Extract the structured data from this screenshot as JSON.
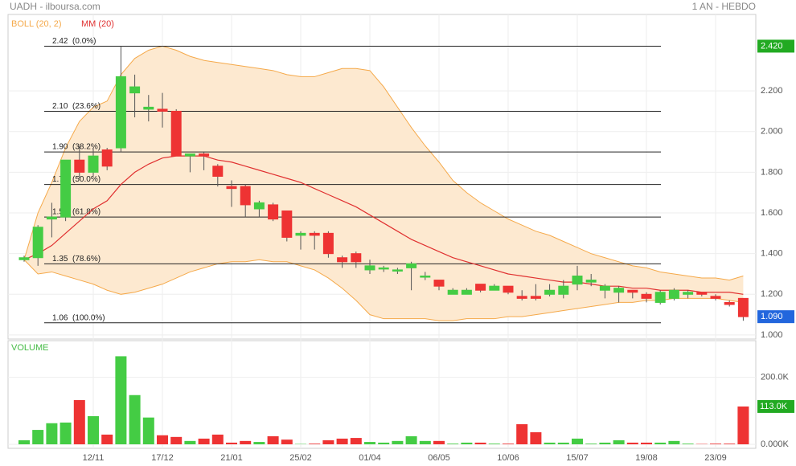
{
  "chart_data": {
    "type": "candlestick",
    "title": "UADH - ilboursa.com",
    "period": "1 AN - HEBDO",
    "volume_title": "VOLUME",
    "categories": [
      null,
      null,
      null,
      null,
      null,
      "12/11",
      null,
      null,
      null,
      null,
      "17/12",
      null,
      null,
      null,
      null,
      "21/01",
      null,
      null,
      null,
      null,
      "25/02",
      null,
      null,
      null,
      null,
      "01/04",
      null,
      null,
      null,
      null,
      "06/05",
      null,
      null,
      null,
      null,
      "10/06",
      null,
      null,
      null,
      null,
      "15/07",
      null,
      null,
      null,
      null,
      "19/08",
      null,
      null,
      null,
      null,
      "23/09",
      null,
      null
    ],
    "open": [
      1.37,
      1.38,
      1.57,
      1.58,
      1.86,
      1.8,
      1.91,
      1.92,
      2.19,
      2.11,
      2.11,
      2.1,
      1.88,
      1.89,
      1.83,
      1.73,
      1.73,
      1.62,
      1.64,
      1.61,
      1.49,
      1.5,
      1.5,
      1.38,
      1.4,
      1.32,
      1.33,
      1.32,
      1.33,
      1.29,
      1.27,
      1.2,
      1.2,
      1.25,
      1.22,
      1.24,
      1.19,
      1.19,
      1.2,
      1.2,
      1.25,
      1.26,
      1.22,
      1.21,
      1.22,
      1.2,
      1.16,
      1.18,
      1.2,
      1.21,
      1.19,
      1.16,
      1.18
    ],
    "high": [
      1.39,
      1.54,
      1.65,
      1.86,
      1.93,
      1.92,
      1.92,
      2.42,
      2.28,
      2.18,
      2.19,
      2.11,
      1.89,
      1.9,
      1.84,
      1.76,
      1.74,
      1.66,
      1.65,
      1.61,
      1.51,
      1.51,
      1.51,
      1.39,
      1.41,
      1.37,
      1.34,
      1.33,
      1.36,
      1.31,
      1.27,
      1.23,
      1.23,
      1.25,
      1.25,
      1.24,
      1.22,
      1.25,
      1.25,
      1.27,
      1.34,
      1.3,
      1.25,
      1.24,
      1.22,
      1.21,
      1.22,
      1.23,
      1.22,
      1.21,
      1.2,
      1.17,
      1.18
    ],
    "low": [
      1.36,
      1.34,
      1.48,
      1.56,
      1.77,
      1.78,
      1.81,
      1.9,
      2.07,
      2.05,
      2.02,
      1.88,
      1.8,
      1.81,
      1.73,
      1.63,
      1.58,
      1.58,
      1.56,
      1.46,
      1.42,
      1.42,
      1.38,
      1.33,
      1.33,
      1.3,
      1.31,
      1.3,
      1.22,
      1.27,
      1.22,
      1.2,
      1.2,
      1.21,
      1.22,
      1.2,
      1.17,
      1.17,
      1.19,
      1.18,
      1.22,
      1.24,
      1.18,
      1.16,
      1.18,
      1.16,
      1.15,
      1.17,
      1.18,
      1.19,
      1.17,
      1.14,
      1.07
    ],
    "close": [
      1.38,
      1.53,
      1.58,
      1.86,
      1.8,
      1.88,
      1.83,
      2.27,
      2.22,
      2.12,
      2.1,
      1.88,
      1.89,
      1.88,
      1.78,
      1.72,
      1.64,
      1.65,
      1.57,
      1.48,
      1.5,
      1.49,
      1.4,
      1.36,
      1.36,
      1.34,
      1.33,
      1.32,
      1.35,
      1.29,
      1.24,
      1.22,
      1.22,
      1.22,
      1.24,
      1.21,
      1.18,
      1.18,
      1.22,
      1.24,
      1.29,
      1.27,
      1.24,
      1.23,
      1.21,
      1.18,
      1.21,
      1.22,
      1.21,
      1.2,
      1.18,
      1.15,
      1.09
    ],
    "volume": [
      12000,
      43000,
      63000,
      65000,
      132000,
      84000,
      29000,
      263000,
      147000,
      80000,
      27000,
      22000,
      10000,
      17000,
      29000,
      5000,
      10000,
      7000,
      24000,
      14000,
      1000,
      2000,
      12000,
      17000,
      19000,
      7000,
      5000,
      10000,
      24000,
      10000,
      10000,
      2000,
      5000,
      5000,
      2000,
      2000,
      60000,
      36000,
      5000,
      5000,
      17000,
      2000,
      5000,
      12000,
      5000,
      5000,
      5000,
      10000,
      2000,
      1000,
      2000,
      2000,
      113000
    ],
    "up_color": "#44cc44",
    "down_color": "#ee3333",
    "bollinger": {
      "name": "BOLL (20, 2)",
      "color": "#f5a94a",
      "fill": "#fde9d0",
      "upper": [
        1.37,
        1.6,
        1.75,
        1.92,
        2.05,
        2.12,
        2.15,
        2.28,
        2.36,
        2.4,
        2.42,
        2.4,
        2.37,
        2.35,
        2.34,
        2.33,
        2.32,
        2.31,
        2.3,
        2.28,
        2.27,
        2.27,
        2.29,
        2.31,
        2.31,
        2.3,
        2.22,
        2.12,
        2.02,
        1.93,
        1.85,
        1.76,
        1.7,
        1.65,
        1.61,
        1.57,
        1.54,
        1.51,
        1.49,
        1.46,
        1.43,
        1.4,
        1.38,
        1.36,
        1.34,
        1.33,
        1.31,
        1.3,
        1.29,
        1.28,
        1.28,
        1.27,
        1.29
      ],
      "lower": [
        1.37,
        1.3,
        1.31,
        1.29,
        1.27,
        1.25,
        1.22,
        1.2,
        1.21,
        1.23,
        1.25,
        1.28,
        1.31,
        1.33,
        1.35,
        1.36,
        1.36,
        1.37,
        1.36,
        1.36,
        1.34,
        1.32,
        1.28,
        1.23,
        1.17,
        1.1,
        1.08,
        1.08,
        1.08,
        1.08,
        1.07,
        1.07,
        1.08,
        1.08,
        1.08,
        1.09,
        1.09,
        1.1,
        1.11,
        1.12,
        1.13,
        1.14,
        1.15,
        1.16,
        1.16,
        1.17,
        1.17,
        1.18,
        1.18,
        1.18,
        1.18,
        1.17,
        1.16
      ]
    },
    "ma": {
      "name": "MM (20)",
      "color": "#e03030",
      "values": [
        1.37,
        1.4,
        1.44,
        1.5,
        1.56,
        1.62,
        1.66,
        1.74,
        1.8,
        1.84,
        1.87,
        1.88,
        1.88,
        1.88,
        1.86,
        1.85,
        1.83,
        1.81,
        1.79,
        1.77,
        1.75,
        1.72,
        1.69,
        1.66,
        1.63,
        1.59,
        1.55,
        1.51,
        1.47,
        1.44,
        1.41,
        1.38,
        1.36,
        1.34,
        1.32,
        1.3,
        1.29,
        1.28,
        1.27,
        1.26,
        1.26,
        1.25,
        1.24,
        1.24,
        1.23,
        1.23,
        1.22,
        1.22,
        1.22,
        1.21,
        1.21,
        1.21,
        1.2
      ]
    },
    "fibonacci": [
      {
        "value": 2.42,
        "label": "2.42  (0.0%)"
      },
      {
        "value": 2.1,
        "label": "2.10  (23.6%)"
      },
      {
        "value": 1.9,
        "label": "1.90  (38.2%)"
      },
      {
        "value": 1.74,
        "label": "1.74  (50.0%)"
      },
      {
        "value": 1.58,
        "label": "1.58  (61.8%)"
      },
      {
        "value": 1.35,
        "label": "1.35  (78.6%)"
      },
      {
        "value": 1.06,
        "label": "1.06  (100.0%)"
      }
    ],
    "ylim": [
      0.98,
      2.56
    ],
    "yticks": [
      {
        "value": 1.0,
        "label": "1.000"
      },
      {
        "value": 1.2,
        "label": "1.200"
      },
      {
        "value": 1.4,
        "label": "1.400"
      },
      {
        "value": 1.6,
        "label": "1.600"
      },
      {
        "value": 1.8,
        "label": "1.800"
      },
      {
        "value": 2.0,
        "label": "2.000"
      },
      {
        "value": 2.2,
        "label": "2.200"
      }
    ],
    "volume_ylim": [
      0,
      300000
    ],
    "volume_yticks": [
      {
        "value": 0,
        "label": "0.000K"
      },
      {
        "value": 200000,
        "label": "200.0K"
      }
    ],
    "badges": [
      {
        "value": 2.42,
        "label": "2.420",
        "color": "#22aa22"
      },
      {
        "value": 1.09,
        "label": "1.090",
        "color": "#2266dd"
      }
    ],
    "volume_badge": {
      "value": 113000,
      "label": "113.0K",
      "color": "#22aa22"
    }
  }
}
